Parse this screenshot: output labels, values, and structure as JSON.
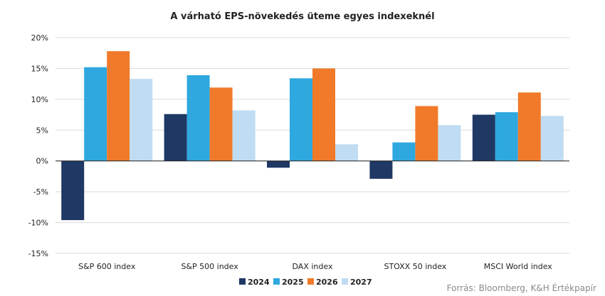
{
  "chart_data": {
    "type": "bar",
    "title": "A várható EPS-növekedés üteme egyes indexeknél",
    "categories": [
      "S&P 600 index",
      "S&P 500 index",
      "DAX index",
      "STOXX 50 index",
      "MSCI World index"
    ],
    "series": [
      {
        "name": "2024",
        "color": "#1f3864",
        "values": [
          -9.6,
          7.6,
          -1.1,
          -2.9,
          7.5
        ]
      },
      {
        "name": "2025",
        "color": "#2ea8df",
        "values": [
          15.2,
          13.9,
          13.4,
          3.0,
          7.9
        ]
      },
      {
        "name": "2026",
        "color": "#f07a2a",
        "values": [
          17.8,
          11.9,
          15.0,
          8.9,
          11.1
        ]
      },
      {
        "name": "2027",
        "color": "#bfdcf2",
        "values": [
          13.3,
          8.2,
          2.7,
          5.8,
          7.3
        ]
      }
    ],
    "ylim": [
      -15,
      20
    ],
    "yticks": [
      20,
      15,
      10,
      5,
      0,
      -5,
      -10,
      -15
    ],
    "ytick_labels": [
      "20%",
      "15%",
      "10%",
      "5%",
      "0%",
      "-5%",
      "-10%",
      "-15%"
    ],
    "grid": true,
    "legend_position": "bottom",
    "source": "Forrás: Bloomberg, K&H Értékpapír"
  }
}
